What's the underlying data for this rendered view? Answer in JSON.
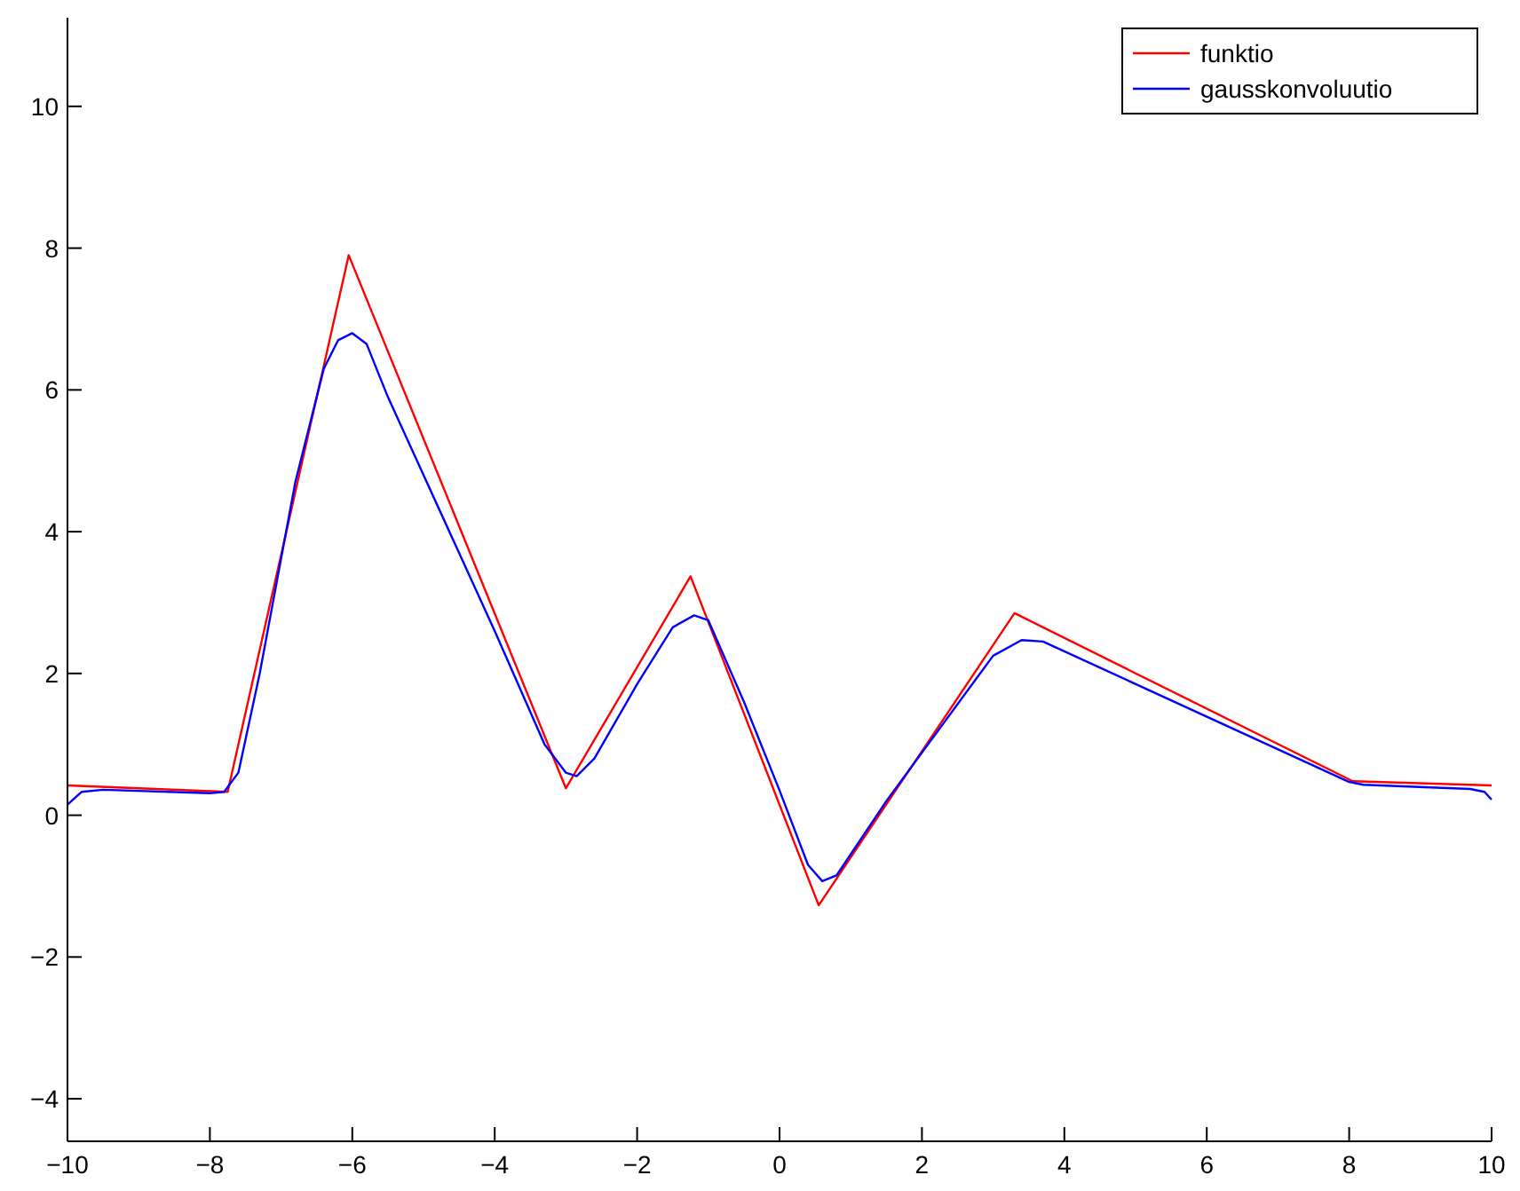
{
  "chart_data": {
    "type": "line",
    "xlim": [
      -10,
      10
    ],
    "ylim": [
      -4.6,
      11.25
    ],
    "xticks": [
      -10,
      -8,
      -6,
      -4,
      -2,
      0,
      2,
      4,
      6,
      8,
      10
    ],
    "yticks": [
      -4,
      -2,
      0,
      2,
      4,
      6,
      8,
      10
    ],
    "grid": false,
    "legend": "top right",
    "series": [
      {
        "name": "funktio",
        "color": "#ff0000",
        "x": [
          -10,
          -7.75,
          -6.05,
          -3.0,
          -1.25,
          0.55,
          3.3,
          8.05,
          10
        ],
        "values": [
          0.42,
          0.33,
          7.9,
          0.38,
          3.37,
          -1.27,
          2.85,
          0.48,
          0.42
        ]
      },
      {
        "name": "gausskonvoluutio",
        "color": "#0000ff",
        "x": [
          -10,
          -9.8,
          -9.5,
          -8,
          -7.8,
          -7.6,
          -7.3,
          -6.8,
          -6.4,
          -6.2,
          -6.0,
          -5.8,
          -5.5,
          -4,
          -3.3,
          -3.0,
          -2.85,
          -2.6,
          -2,
          -1.5,
          -1.2,
          -1.0,
          -0.5,
          0,
          0.4,
          0.6,
          0.8,
          1.5,
          3.0,
          3.4,
          3.7,
          8,
          8.2,
          9.7,
          9.9,
          10
        ],
        "values": [
          0.15,
          0.33,
          0.36,
          0.31,
          0.33,
          0.6,
          2.0,
          4.7,
          6.3,
          6.7,
          6.8,
          6.65,
          5.9,
          2.6,
          1.0,
          0.6,
          0.55,
          0.8,
          1.85,
          2.65,
          2.82,
          2.75,
          1.6,
          0.35,
          -0.7,
          -0.93,
          -0.85,
          0.2,
          2.25,
          2.47,
          2.45,
          0.47,
          0.43,
          0.37,
          0.33,
          0.22
        ]
      }
    ]
  }
}
